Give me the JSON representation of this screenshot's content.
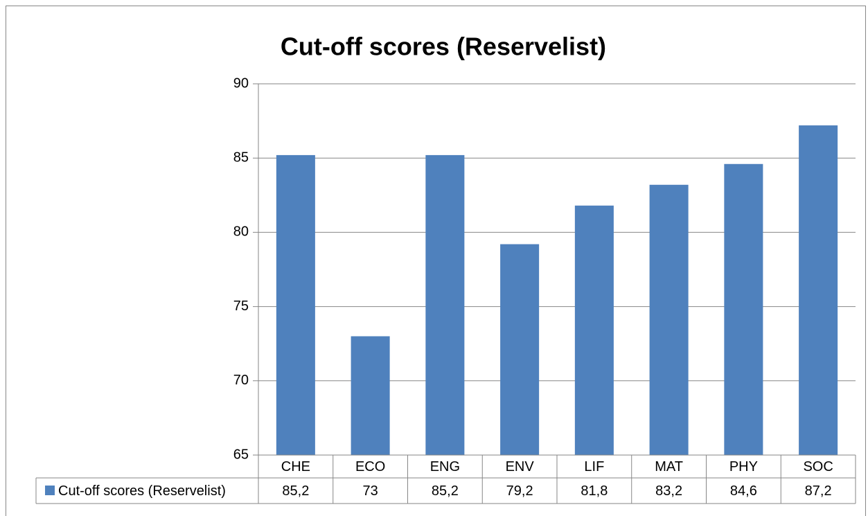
{
  "chart_data": {
    "type": "bar",
    "title": "Cut-off scores (Reservelist)",
    "categories": [
      "CHE",
      "ECO",
      "ENG",
      "ENV",
      "LIF",
      "MAT",
      "PHY",
      "SOC"
    ],
    "series": [
      {
        "name": "Cut-off scores (Reservelist)",
        "color": "#4f81bd",
        "values": [
          85.2,
          73,
          85.2,
          79.2,
          81.8,
          83.2,
          84.6,
          87.2
        ],
        "value_labels": [
          "85,2",
          "73",
          "85,2",
          "79,2",
          "81,8",
          "83,2",
          "84,6",
          "87,2"
        ]
      }
    ],
    "ylim": [
      65,
      90
    ],
    "yticks": [
      65,
      70,
      75,
      80,
      85,
      90
    ],
    "grid": true
  }
}
